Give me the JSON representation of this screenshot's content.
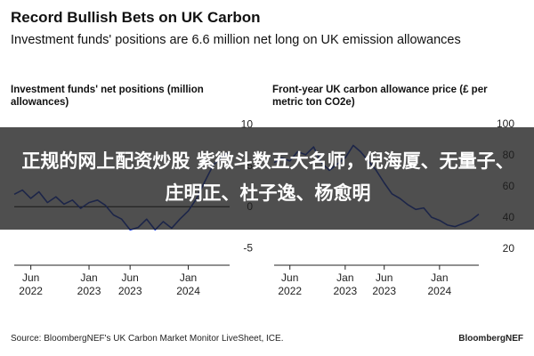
{
  "header": {
    "title": "Record Bullish Bets on UK Carbon",
    "subtitle": "Investment funds' positions are 6.6 million net long on UK emission allowances"
  },
  "panels": {
    "left_title": "Investment funds' net positions (million allowances)",
    "right_title": "Front-year UK carbon allowance price (£ per metric ton CO2e)"
  },
  "footer": {
    "source": "Source: BloombergNEF's UK Carbon Market Monitor LiveSheet, ICE.",
    "brand": "BloombergNEF"
  },
  "overlay": {
    "text": "正规的网上配资炒股 紫微斗数五大名师，倪海厦、无量子、庄明正、杜子逸、杨愈明"
  },
  "colors": {
    "line": "#1a3fe0",
    "axis": "#222222",
    "zero_line": "#000000"
  },
  "chart_data": [
    {
      "type": "line",
      "title": "Investment funds' net positions (million allowances)",
      "y_ticks": [
        10,
        5,
        0,
        -5
      ],
      "ylim": [
        -6,
        11
      ],
      "x_ticks": [
        {
          "date": "2022-06-01",
          "label": "Jun\n2022"
        },
        {
          "date": "2023-01-01",
          "label": "Jan\n2023"
        },
        {
          "date": "2023-06-01",
          "label": "Jun\n2023"
        },
        {
          "date": "2024-01-01",
          "label": "Jan\n2024"
        }
      ],
      "xlim": [
        "2022-04-01",
        "2024-06-01"
      ],
      "grid": false,
      "series": [
        {
          "x": [
            "2022-04-01",
            "2022-05-01",
            "2022-06-01",
            "2022-07-01",
            "2022-08-01",
            "2022-09-01",
            "2022-10-01",
            "2022-11-01",
            "2022-12-01",
            "2023-01-01",
            "2023-02-01",
            "2023-03-01",
            "2023-04-01",
            "2023-05-01",
            "2023-06-01",
            "2023-07-01",
            "2023-08-01",
            "2023-09-01",
            "2023-10-01",
            "2023-11-01",
            "2023-12-01",
            "2024-01-01",
            "2024-02-01",
            "2024-03-01",
            "2024-04-01",
            "2024-05-01",
            "2024-06-01"
          ],
          "y": [
            1.5,
            2.0,
            1.0,
            1.8,
            0.5,
            1.2,
            0.3,
            0.8,
            -0.2,
            0.5,
            0.8,
            0.2,
            -1.0,
            -1.5,
            -2.8,
            -2.5,
            -1.5,
            -2.8,
            -1.8,
            -2.6,
            -1.5,
            -0.5,
            1.0,
            3.0,
            5.0,
            6.0,
            6.6
          ]
        }
      ]
    },
    {
      "type": "line",
      "title": "Front-year UK carbon allowance price (£ per metric ton CO2e)",
      "y_ticks": [
        100,
        80,
        60,
        40,
        20
      ],
      "ylim": [
        15,
        105
      ],
      "x_ticks": [
        {
          "date": "2022-06-01",
          "label": "Jun\n2022"
        },
        {
          "date": "2023-01-01",
          "label": "Jan\n2023"
        },
        {
          "date": "2023-06-01",
          "label": "Jun\n2023"
        },
        {
          "date": "2024-01-01",
          "label": "Jan\n2024"
        }
      ],
      "xlim": [
        "2022-04-01",
        "2024-06-01"
      ],
      "grid": false,
      "series": [
        {
          "x": [
            "2022-04-01",
            "2022-05-01",
            "2022-06-01",
            "2022-07-01",
            "2022-08-01",
            "2022-09-01",
            "2022-10-01",
            "2022-11-01",
            "2022-12-01",
            "2023-01-01",
            "2023-02-01",
            "2023-03-01",
            "2023-04-01",
            "2023-05-01",
            "2023-06-01",
            "2023-07-01",
            "2023-08-01",
            "2023-09-01",
            "2023-10-01",
            "2023-11-01",
            "2023-12-01",
            "2024-01-01",
            "2024-02-01",
            "2024-03-01",
            "2024-04-01",
            "2024-05-01",
            "2024-06-01"
          ],
          "y": [
            75,
            78,
            76,
            82,
            80,
            85,
            75,
            70,
            74,
            78,
            86,
            82,
            76,
            70,
            62,
            55,
            52,
            48,
            45,
            46,
            40,
            38,
            35,
            34,
            36,
            38,
            42
          ]
        }
      ]
    }
  ]
}
